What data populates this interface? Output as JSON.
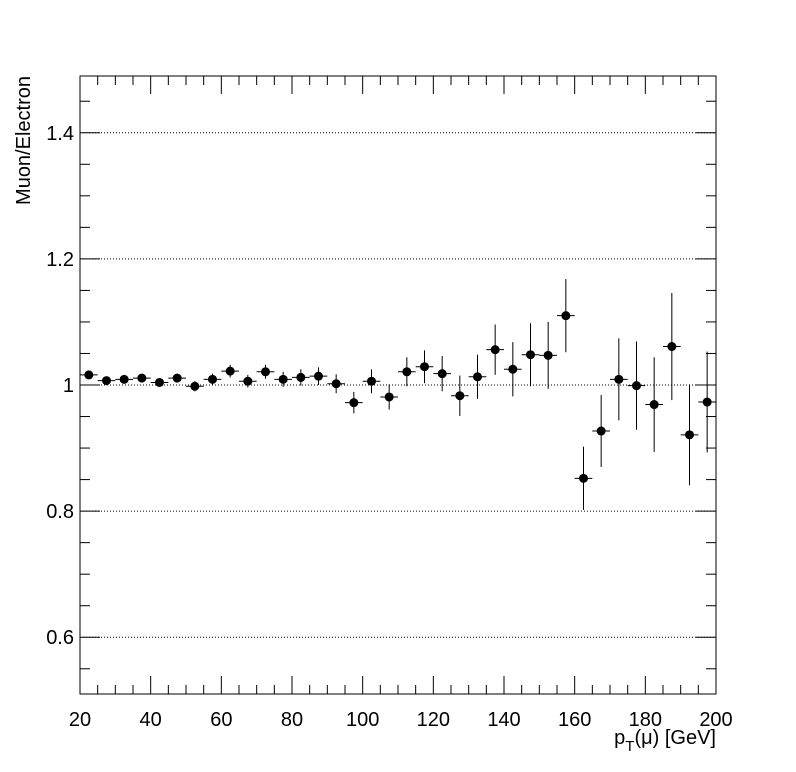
{
  "chart_data": {
    "type": "scatter",
    "title": "",
    "xlabel": "p_T(μ) [GeV]",
    "ylabel": "Muon/Electron",
    "xlim": [
      20,
      200
    ],
    "ylim": [
      0.51,
      1.49
    ],
    "x_ticks": [
      20,
      40,
      60,
      80,
      100,
      120,
      140,
      160,
      180,
      200
    ],
    "x_tick_labels": [
      "20",
      "40",
      "60",
      "80",
      "100",
      "120",
      "140",
      "160",
      "180",
      "200"
    ],
    "y_ticks": [
      0.6,
      0.8,
      1.0,
      1.2,
      1.4
    ],
    "y_tick_labels": [
      "0.6",
      "0.8",
      "1",
      "1.2",
      "1.4"
    ],
    "grid": "horizontal dotted",
    "marker_color": "#000000",
    "bin_half_width": 2.5,
    "series": [
      {
        "x": [
          22.5,
          27.5,
          32.5,
          37.5,
          42.5,
          47.5,
          52.5,
          57.5,
          62.5,
          67.5,
          72.5,
          77.5,
          82.5,
          87.5,
          92.5,
          97.5,
          102.5,
          107.5,
          112.5,
          117.5,
          122.5,
          127.5,
          132.5,
          137.5,
          142.5,
          147.5,
          152.5,
          157.5,
          162.5,
          167.5,
          172.5,
          177.5,
          182.5,
          187.5,
          192.5,
          197.5
        ],
        "y": [
          1.016,
          1.007,
          1.009,
          1.011,
          1.004,
          1.011,
          0.998,
          1.009,
          1.022,
          1.006,
          1.021,
          1.009,
          1.012,
          1.014,
          1.002,
          0.972,
          1.006,
          0.981,
          1.021,
          1.029,
          1.018,
          0.983,
          1.013,
          1.056,
          1.025,
          1.048,
          1.047,
          1.11,
          0.852,
          0.927,
          1.009,
          0.999,
          0.969,
          1.061,
          0.921,
          0.973
        ],
        "yerr": [
          0.005,
          0.005,
          0.006,
          0.006,
          0.006,
          0.007,
          0.008,
          0.009,
          0.01,
          0.01,
          0.011,
          0.012,
          0.013,
          0.014,
          0.015,
          0.017,
          0.019,
          0.02,
          0.023,
          0.026,
          0.028,
          0.032,
          0.035,
          0.04,
          0.043,
          0.05,
          0.053,
          0.058,
          0.05,
          0.057,
          0.065,
          0.07,
          0.075,
          0.085,
          0.08,
          0.08
        ]
      }
    ]
  }
}
